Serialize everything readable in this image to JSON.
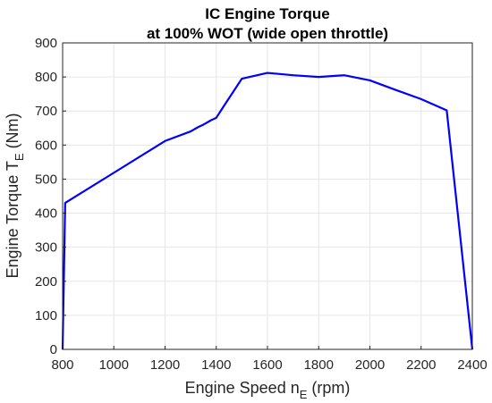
{
  "chart_data": {
    "type": "line",
    "title_line1": "IC Engine Torque",
    "title_line2": "at 100% WOT (wide open throttle)",
    "xlabel": {
      "main": "Engine Speed n",
      "sub": "E",
      "rest": " (rpm)"
    },
    "ylabel": {
      "main": "Engine Torque T",
      "sub": "E",
      "rest": " (Nm)"
    },
    "xlim": [
      800,
      2400
    ],
    "ylim": [
      0,
      900
    ],
    "xticks": [
      800,
      1000,
      1200,
      1400,
      1600,
      1800,
      2000,
      2200,
      2400
    ],
    "yticks": [
      0,
      100,
      200,
      300,
      400,
      500,
      600,
      700,
      800,
      900
    ],
    "grid": true,
    "line_color": "#0000ff",
    "series": [
      {
        "x": [
          800,
          810,
          1200,
          1300,
          1330,
          1350,
          1380,
          1400,
          1430,
          1500,
          1600,
          1700,
          1800,
          1900,
          2000,
          2100,
          2200,
          2300,
          2400
        ],
        "y": [
          0,
          430,
          612,
          640,
          653,
          660,
          673,
          680,
          715,
          795,
          812,
          805,
          800,
          805,
          790,
          762,
          735,
          702,
          0
        ]
      }
    ]
  }
}
